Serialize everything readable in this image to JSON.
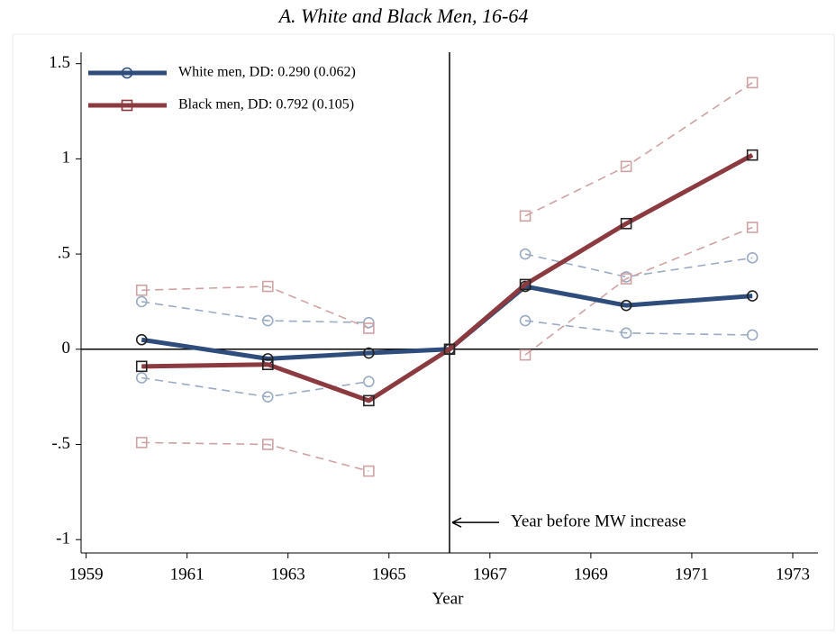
{
  "chart_data": {
    "type": "line",
    "title": "A.   White and Black Men, 16-64",
    "x_label": "Year",
    "x": [
      1960.1,
      1962.6,
      1964.6,
      1966.2,
      1967.7,
      1969.7,
      1972.2
    ],
    "xlim": [
      1958.9,
      1973.5
    ],
    "xticks": [
      1959,
      1961,
      1963,
      1965,
      1967,
      1969,
      1971,
      1973
    ],
    "ylim": [
      -1.07,
      1.56
    ],
    "yticks": [
      {
        "value": -1,
        "label": "-1"
      },
      {
        "value": -0.5,
        "label": "-.5"
      },
      0,
      {
        "value": 0.5,
        "label": ".5"
      },
      1,
      1.5
    ],
    "vline": 1966.2,
    "annotation": "Year before MW increase",
    "legend": "upper left",
    "series": [
      {
        "color": "#9aabc4",
        "dash": true,
        "marker": "circle",
        "values": [
          0.25,
          0.15,
          0.14,
          null,
          0.5,
          0.38,
          0.48
        ]
      },
      {
        "color": "#9aabc4",
        "dash": true,
        "marker": "circle",
        "values": [
          -0.15,
          -0.25,
          -0.17,
          null,
          0.15,
          0.085,
          0.075
        ]
      },
      {
        "color": "#cfa2a4",
        "dash": true,
        "marker": "square",
        "values": [
          0.31,
          0.33,
          0.11,
          null,
          0.7,
          0.96,
          1.4
        ]
      },
      {
        "color": "#cfa2a4",
        "dash": true,
        "marker": "square",
        "values": [
          -0.49,
          -0.5,
          -0.64,
          null,
          -0.03,
          0.37,
          0.64
        ]
      },
      {
        "name": "White men, DD: 0.290 (0.062)",
        "color": "#2e4d7c",
        "marker": "circle",
        "values": [
          0.05,
          -0.05,
          -0.02,
          0,
          0.33,
          0.23,
          0.28
        ]
      },
      {
        "name": "Black men, DD: 0.792 (0.105)",
        "color": "#8b3a40",
        "marker": "square",
        "values": [
          -0.09,
          -0.08,
          -0.27,
          0,
          0.34,
          0.66,
          1.02
        ]
      }
    ]
  }
}
